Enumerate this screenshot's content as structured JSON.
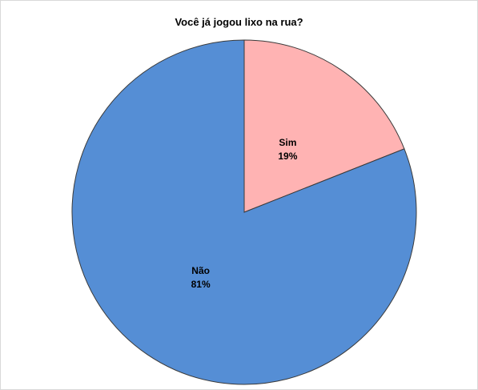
{
  "chart_data": {
    "type": "pie",
    "title": "Você já jogou lixo na rua?",
    "slices": [
      {
        "label": "Sim",
        "value": 19,
        "value_label": "19%",
        "color": "#FFB3B3"
      },
      {
        "label": "Não",
        "value": 81,
        "value_label": "81%",
        "color": "#558ED5"
      }
    ],
    "start_angle_deg": 0,
    "direction": "clockwise",
    "edge_color": "#3a3a3a"
  }
}
